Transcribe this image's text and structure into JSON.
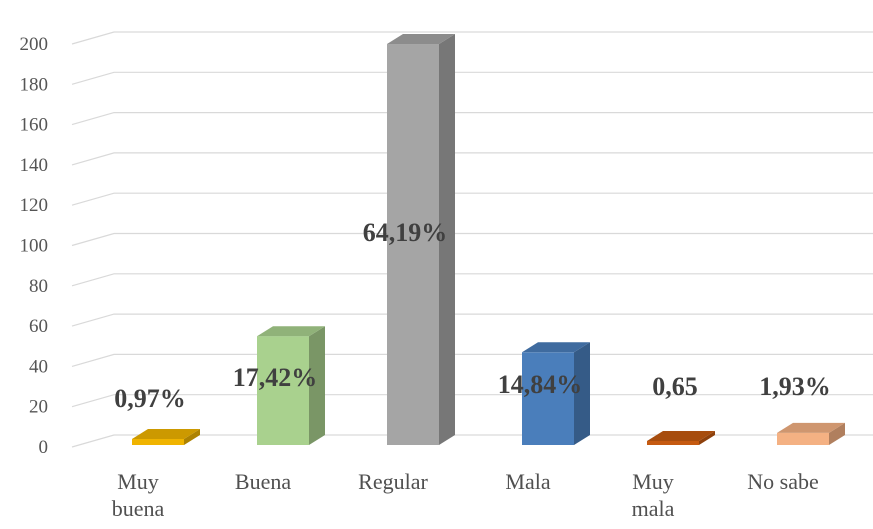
{
  "chart_data": {
    "type": "bar3d",
    "categories": [
      "Muy buena",
      "Buena",
      "Regular",
      "Mala",
      "Muy mala",
      "No sabe"
    ],
    "values": [
      3,
      54,
      199,
      46,
      2,
      6
    ],
    "colors": [
      "#f0b400",
      "#a9d18e",
      "#a5a5a5",
      "#4a7ebb",
      "#c55a11",
      "#f4b183"
    ],
    "percent_values": [
      0.97,
      17.42,
      64.19,
      14.84,
      0.65,
      1.93
    ],
    "percent_labels": [
      "0,97%",
      "17,42%",
      "64,19%",
      "14,84%",
      "0,65",
      "1,93%"
    ],
    "ylim": [
      0,
      200
    ],
    "yticks": [
      0,
      20,
      40,
      60,
      80,
      100,
      120,
      140,
      160,
      180,
      200
    ],
    "grid": true
  }
}
